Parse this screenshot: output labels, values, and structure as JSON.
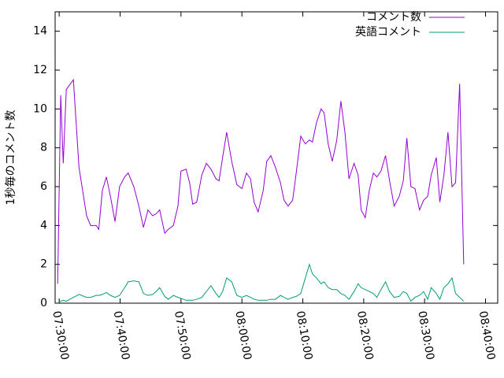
{
  "chart_data": {
    "type": "line",
    "y_label": "1秒毎のコメント数",
    "x": [
      "07:29:45",
      "07:30:15",
      "07:30:40",
      "07:31:10",
      "07:32:20",
      "07:33:15",
      "07:34:30",
      "07:35:10",
      "07:36:05",
      "07:36:30",
      "07:37:05",
      "07:37:45",
      "07:38:25",
      "07:39:10",
      "07:39:55",
      "07:40:45",
      "07:41:20",
      "07:42:15",
      "07:43:05",
      "07:43:50",
      "07:44:35",
      "07:45:20",
      "07:45:55",
      "07:46:30",
      "07:47:20",
      "07:47:55",
      "07:48:45",
      "07:49:30",
      "07:50:00",
      "07:50:50",
      "07:51:25",
      "07:51:55",
      "07:52:35",
      "07:53:25",
      "07:54:10",
      "07:54:55",
      "07:55:45",
      "07:56:15",
      "07:56:50",
      "07:57:30",
      "07:58:20",
      "07:59:10",
      "08:00:00",
      "08:00:45",
      "08:01:25",
      "08:02:00",
      "08:02:40",
      "08:03:30",
      "08:04:05",
      "08:04:45",
      "08:05:30",
      "08:06:20",
      "08:06:55",
      "08:07:35",
      "08:08:20",
      "08:08:55",
      "08:09:40",
      "08:10:25",
      "08:11:05",
      "08:11:35",
      "08:12:15",
      "08:13:00",
      "08:13:30",
      "08:14:10",
      "08:14:50",
      "08:15:35",
      "08:16:15",
      "08:16:55",
      "08:17:35",
      "08:18:25",
      "08:19:05",
      "08:19:35",
      "08:20:15",
      "08:20:55",
      "08:21:35",
      "08:22:10",
      "08:22:50",
      "08:23:35",
      "08:24:15",
      "08:25:00",
      "08:25:50",
      "08:26:30",
      "08:27:05",
      "08:27:45",
      "08:28:25",
      "08:29:10",
      "08:29:50",
      "08:30:30",
      "08:31:05",
      "08:31:55",
      "08:32:30",
      "08:33:10",
      "08:33:50",
      "08:34:30",
      "08:35:05",
      "08:35:45",
      "08:36:25"
    ],
    "series": [
      {
        "name": "コメント数",
        "color": "#9400d3",
        "values": [
          1,
          10.7,
          7.2,
          11,
          11.5,
          7,
          4.5,
          4,
          4,
          3.8,
          5.8,
          6.5,
          5.5,
          4.2,
          6,
          6.5,
          6.7,
          6,
          5,
          3.9,
          4.8,
          4.5,
          4.6,
          4.8,
          3.6,
          3.8,
          4,
          5,
          6.8,
          6.9,
          6.2,
          5.1,
          5.2,
          6.6,
          7.2,
          6.9,
          6.4,
          6.3,
          7.5,
          8.8,
          7.3,
          6.1,
          5.9,
          6.7,
          6.4,
          5.2,
          4.7,
          5.8,
          7.3,
          7.6,
          7,
          6.2,
          5.3,
          5,
          5.3,
          6.7,
          8.6,
          8.2,
          8.4,
          8.3,
          9.3,
          10,
          9.8,
          8.2,
          7.3,
          8.4,
          10.4,
          8.8,
          6.4,
          7.2,
          6.6,
          4.8,
          4.4,
          5.8,
          6.7,
          6.5,
          6.8,
          7.6,
          6.3,
          5,
          5.5,
          6.3,
          8.5,
          6,
          5.9,
          4.8,
          5.3,
          5.5,
          6.6,
          7.5,
          5.2,
          6.6,
          8.8,
          6,
          6.2,
          11.3,
          2
        ]
      },
      {
        "name": "英語コメント",
        "color": "#009e73",
        "values": [
          0,
          0.1,
          0.15,
          0.1,
          0.3,
          0.45,
          0.3,
          0.3,
          0.4,
          0.4,
          0.45,
          0.55,
          0.4,
          0.3,
          0.4,
          0.8,
          1.1,
          1.15,
          1.1,
          0.5,
          0.4,
          0.45,
          0.6,
          0.8,
          0.35,
          0.2,
          0.4,
          0.3,
          0.25,
          0.15,
          0.15,
          0.15,
          0.2,
          0.3,
          0.6,
          0.9,
          0.5,
          0.3,
          0.6,
          1.3,
          1.1,
          0.4,
          0.3,
          0.4,
          0.3,
          0.2,
          0.15,
          0.15,
          0.15,
          0.2,
          0.2,
          0.4,
          0.3,
          0.2,
          0.3,
          0.35,
          0.5,
          1.3,
          2.0,
          1.5,
          1.3,
          1.0,
          1.1,
          0.8,
          0.7,
          0.7,
          0.5,
          0.4,
          0.2,
          0.6,
          1.0,
          0.8,
          0.7,
          0.6,
          0.5,
          0.3,
          0.7,
          1.1,
          0.6,
          0.3,
          0.35,
          0.6,
          0.5,
          0.1,
          0.3,
          0.4,
          0.6,
          0.2,
          0.8,
          0.5,
          0.2,
          0.8,
          1.0,
          1.3,
          0.5,
          0.3,
          0.1
        ]
      }
    ],
    "xlim": [
      "07:29:20",
      "08:42:00"
    ],
    "xticks": [
      "07:30:00",
      "07:40:00",
      "07:50:00",
      "08:00:00",
      "08:10:00",
      "08:20:00",
      "08:30:00",
      "08:40:00"
    ],
    "ylim": [
      0,
      15
    ],
    "yticks": [
      0,
      2,
      4,
      6,
      8,
      10,
      12,
      14
    ],
    "legend": "top-right"
  }
}
